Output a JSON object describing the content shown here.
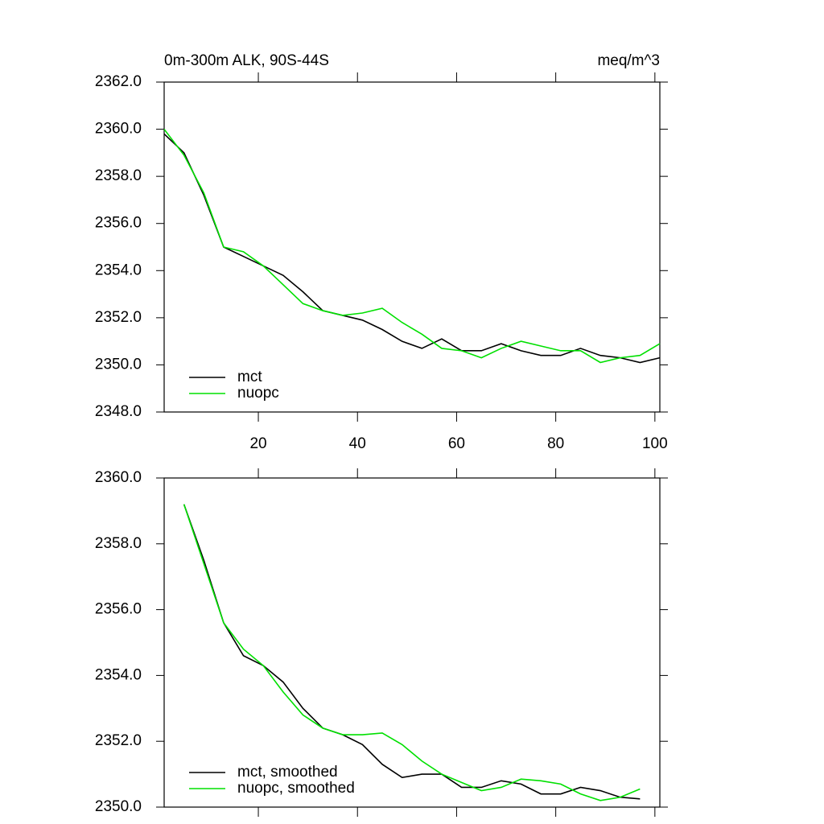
{
  "chart_data": [
    {
      "type": "line",
      "title": "0m-300m ALK, 90S-44S",
      "subtitle": "meq/m^3",
      "x": [
        1,
        5,
        9,
        13,
        17,
        21,
        25,
        29,
        33,
        37,
        41,
        45,
        49,
        53,
        57,
        61,
        65,
        69,
        73,
        77,
        81,
        85,
        89,
        93,
        97,
        101
      ],
      "series": [
        {
          "name": "mct",
          "color": "#000000",
          "values": [
            2359.8,
            2359.0,
            2357.2,
            2355.0,
            2354.6,
            2354.2,
            2353.8,
            2353.1,
            2352.3,
            2352.1,
            2351.9,
            2351.5,
            2351.0,
            2350.7,
            2351.1,
            2350.6,
            2350.6,
            2350.9,
            2350.6,
            2350.4,
            2350.4,
            2350.7,
            2350.4,
            2350.3,
            2350.1,
            2350.3
          ]
        },
        {
          "name": "nuopc",
          "color": "#00e000",
          "values": [
            2360.0,
            2358.9,
            2357.3,
            2355.0,
            2354.8,
            2354.2,
            2353.4,
            2352.6,
            2352.3,
            2352.1,
            2352.2,
            2352.4,
            2351.8,
            2351.3,
            2350.7,
            2350.6,
            2350.3,
            2350.7,
            2351.0,
            2350.8,
            2350.6,
            2350.6,
            2350.1,
            2350.3,
            2350.4,
            2350.9
          ]
        }
      ],
      "xlim": [
        1,
        101
      ],
      "xticks": [
        20,
        40,
        60,
        80,
        100
      ],
      "show_xtick_labels": true,
      "ylim": [
        2348,
        2362
      ],
      "yticks": [
        {
          "value": 2348,
          "label": "2348.0"
        },
        {
          "value": 2350,
          "label": "2350.0"
        },
        {
          "value": 2352,
          "label": "2352.0"
        },
        {
          "value": 2354,
          "label": "2354.0"
        },
        {
          "value": 2356,
          "label": "2356.0"
        },
        {
          "value": 2358,
          "label": "2358.0"
        },
        {
          "value": 2360,
          "label": "2360.0"
        },
        {
          "value": 2362,
          "label": "2362.0"
        }
      ],
      "legend": "lower-left"
    },
    {
      "type": "line",
      "x": [
        5,
        9,
        13,
        17,
        21,
        25,
        29,
        33,
        37,
        41,
        45,
        49,
        53,
        57,
        61,
        65,
        69,
        73,
        77,
        81,
        85,
        89,
        93,
        97
      ],
      "series": [
        {
          "name": "mct, smoothed",
          "color": "#000000",
          "values": [
            2359.2,
            2357.5,
            2355.6,
            2354.6,
            2354.3,
            2353.8,
            2353.0,
            2352.4,
            2352.2,
            2351.9,
            2351.3,
            2350.9,
            2351.0,
            2351.0,
            2350.6,
            2350.6,
            2350.8,
            2350.7,
            2350.4,
            2350.4,
            2350.6,
            2350.5,
            2350.3,
            2350.25
          ]
        },
        {
          "name": "nuopc, smoothed",
          "color": "#00e000",
          "values": [
            2359.2,
            2357.4,
            2355.6,
            2354.8,
            2354.3,
            2353.5,
            2352.8,
            2352.4,
            2352.2,
            2352.2,
            2352.25,
            2351.9,
            2351.4,
            2351.0,
            2350.75,
            2350.5,
            2350.6,
            2350.85,
            2350.8,
            2350.7,
            2350.4,
            2350.2,
            2350.3,
            2350.55
          ]
        }
      ],
      "xlim": [
        1,
        101
      ],
      "xticks": [
        20,
        40,
        60,
        80,
        100
      ],
      "show_xtick_labels": false,
      "ylim": [
        2350,
        2360
      ],
      "yticks": [
        {
          "value": 2350,
          "label": "2350.0"
        },
        {
          "value": 2352,
          "label": "2352.0"
        },
        {
          "value": 2354,
          "label": "2354.0"
        },
        {
          "value": 2356,
          "label": "2356.0"
        },
        {
          "value": 2358,
          "label": "2358.0"
        },
        {
          "value": 2360,
          "label": "2360.0"
        }
      ],
      "legend": "lower-left"
    }
  ]
}
